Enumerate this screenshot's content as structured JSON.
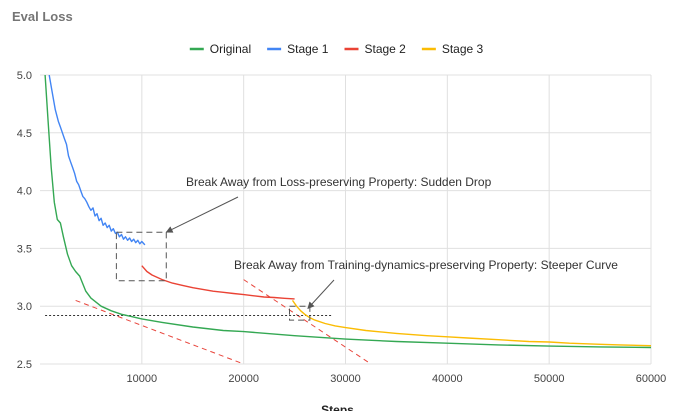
{
  "chart_title": "Eval Loss",
  "chart_data": {
    "type": "line",
    "title": "Eval Loss",
    "xlabel": "Steps",
    "ylabel": "",
    "xlim": [
      0,
      60000
    ],
    "ylim": [
      2.5,
      5.0
    ],
    "x_ticks": [
      10000,
      20000,
      30000,
      40000,
      50000,
      60000
    ],
    "y_ticks": [
      2.5,
      3.0,
      3.5,
      4.0,
      4.5,
      5.0
    ],
    "grid": true,
    "legend_position": "top",
    "series": [
      {
        "name": "Original",
        "color": "#34a853",
        "points": [
          [
            500,
            5.0
          ],
          [
            800,
            4.6
          ],
          [
            1100,
            4.2
          ],
          [
            1400,
            3.9
          ],
          [
            1700,
            3.75
          ],
          [
            2000,
            3.72
          ],
          [
            2300,
            3.6
          ],
          [
            2700,
            3.45
          ],
          [
            3100,
            3.35
          ],
          [
            3500,
            3.3
          ],
          [
            3900,
            3.26
          ],
          [
            4500,
            3.13
          ],
          [
            5000,
            3.07
          ],
          [
            6000,
            3.0
          ],
          [
            7000,
            2.96
          ],
          [
            8000,
            2.93
          ],
          [
            9000,
            2.91
          ],
          [
            10000,
            2.89
          ],
          [
            12000,
            2.86
          ],
          [
            15000,
            2.82
          ],
          [
            18000,
            2.79
          ],
          [
            20000,
            2.78
          ],
          [
            25000,
            2.745
          ],
          [
            30000,
            2.715
          ],
          [
            35000,
            2.695
          ],
          [
            40000,
            2.68
          ],
          [
            45000,
            2.665
          ],
          [
            50000,
            2.655
          ],
          [
            55000,
            2.648
          ],
          [
            60000,
            2.643
          ]
        ]
      },
      {
        "name": "Stage 1",
        "color": "#4285f4",
        "points": [
          [
            900,
            5.0
          ],
          [
            1200,
            4.85
          ],
          [
            1500,
            4.7
          ],
          [
            1800,
            4.6
          ],
          [
            2000,
            4.55
          ],
          [
            2200,
            4.5
          ],
          [
            2400,
            4.45
          ],
          [
            2600,
            4.4
          ],
          [
            2800,
            4.3
          ],
          [
            3000,
            4.25
          ],
          [
            3200,
            4.2
          ],
          [
            3400,
            4.15
          ],
          [
            3600,
            4.08
          ],
          [
            3800,
            4.05
          ],
          [
            4000,
            4.0
          ],
          [
            4200,
            3.95
          ],
          [
            4400,
            3.93
          ],
          [
            4600,
            3.9
          ],
          [
            4800,
            3.86
          ],
          [
            5000,
            3.83
          ],
          [
            5200,
            3.85
          ],
          [
            5400,
            3.78
          ],
          [
            5600,
            3.8
          ],
          [
            5800,
            3.74
          ],
          [
            6000,
            3.76
          ],
          [
            6200,
            3.7
          ],
          [
            6400,
            3.72
          ],
          [
            6600,
            3.68
          ],
          [
            6800,
            3.7
          ],
          [
            7000,
            3.65
          ],
          [
            7200,
            3.67
          ],
          [
            7400,
            3.63
          ],
          [
            7600,
            3.64
          ],
          [
            7800,
            3.6
          ],
          [
            8000,
            3.62
          ],
          [
            8200,
            3.58
          ],
          [
            8400,
            3.6
          ],
          [
            8600,
            3.57
          ],
          [
            8800,
            3.59
          ],
          [
            9000,
            3.56
          ],
          [
            9200,
            3.58
          ],
          [
            9400,
            3.55
          ],
          [
            9600,
            3.57
          ],
          [
            9800,
            3.54
          ],
          [
            10000,
            3.56
          ],
          [
            10300,
            3.53
          ]
        ]
      },
      {
        "name": "Stage 2",
        "color": "#ea4335",
        "points": [
          [
            10000,
            3.35
          ],
          [
            10500,
            3.3
          ],
          [
            11000,
            3.27
          ],
          [
            12000,
            3.23
          ],
          [
            13000,
            3.2
          ],
          [
            14000,
            3.18
          ],
          [
            15000,
            3.16
          ],
          [
            16000,
            3.145
          ],
          [
            17000,
            3.13
          ],
          [
            18000,
            3.12
          ],
          [
            19000,
            3.11
          ],
          [
            20000,
            3.1
          ],
          [
            21000,
            3.09
          ],
          [
            22000,
            3.08
          ],
          [
            23000,
            3.075
          ],
          [
            24000,
            3.068
          ],
          [
            25000,
            3.063
          ]
        ]
      },
      {
        "name": "Stage 3",
        "color": "#fbbc04",
        "points": [
          [
            24800,
            3.05
          ],
          [
            25200,
            3.0
          ],
          [
            25600,
            2.96
          ],
          [
            26000,
            2.93
          ],
          [
            26500,
            2.9
          ],
          [
            27000,
            2.88
          ],
          [
            28000,
            2.85
          ],
          [
            29000,
            2.83
          ],
          [
            30000,
            2.815
          ],
          [
            32000,
            2.79
          ],
          [
            35000,
            2.765
          ],
          [
            38000,
            2.745
          ],
          [
            40000,
            2.735
          ],
          [
            42000,
            2.725
          ],
          [
            45000,
            2.71
          ],
          [
            48000,
            2.695
          ],
          [
            50000,
            2.69
          ],
          [
            52000,
            2.68
          ],
          [
            55000,
            2.67
          ],
          [
            57000,
            2.665
          ],
          [
            60000,
            2.658
          ]
        ]
      }
    ],
    "reference_lines": [
      {
        "kind": "tangent",
        "style": "dashed",
        "color": "#e8453c",
        "from": [
          3500,
          3.05
        ],
        "to": [
          20000,
          2.5
        ]
      },
      {
        "kind": "tangent",
        "style": "dashed",
        "color": "#e8453c",
        "from": [
          20000,
          3.23
        ],
        "to": [
          32500,
          2.5
        ]
      },
      {
        "kind": "baseline",
        "style": "dotted",
        "color": "#333333",
        "from": [
          500,
          2.92
        ],
        "to": [
          28600,
          2.92
        ]
      }
    ],
    "highlight_boxes": [
      {
        "x0": 7500,
        "x1": 12400,
        "y0": 3.22,
        "y1": 3.64
      },
      {
        "x0": 24500,
        "x1": 26500,
        "y0": 2.88,
        "y1": 3.0
      }
    ],
    "annotations": [
      {
        "text": "Break Away from Loss-preserving Property: Sudden Drop",
        "target": [
          12400,
          3.64
        ]
      },
      {
        "text": "Break Away from Training-dynamics-preserving Property: Steeper Curve",
        "target": [
          26300,
          2.98
        ]
      }
    ]
  }
}
